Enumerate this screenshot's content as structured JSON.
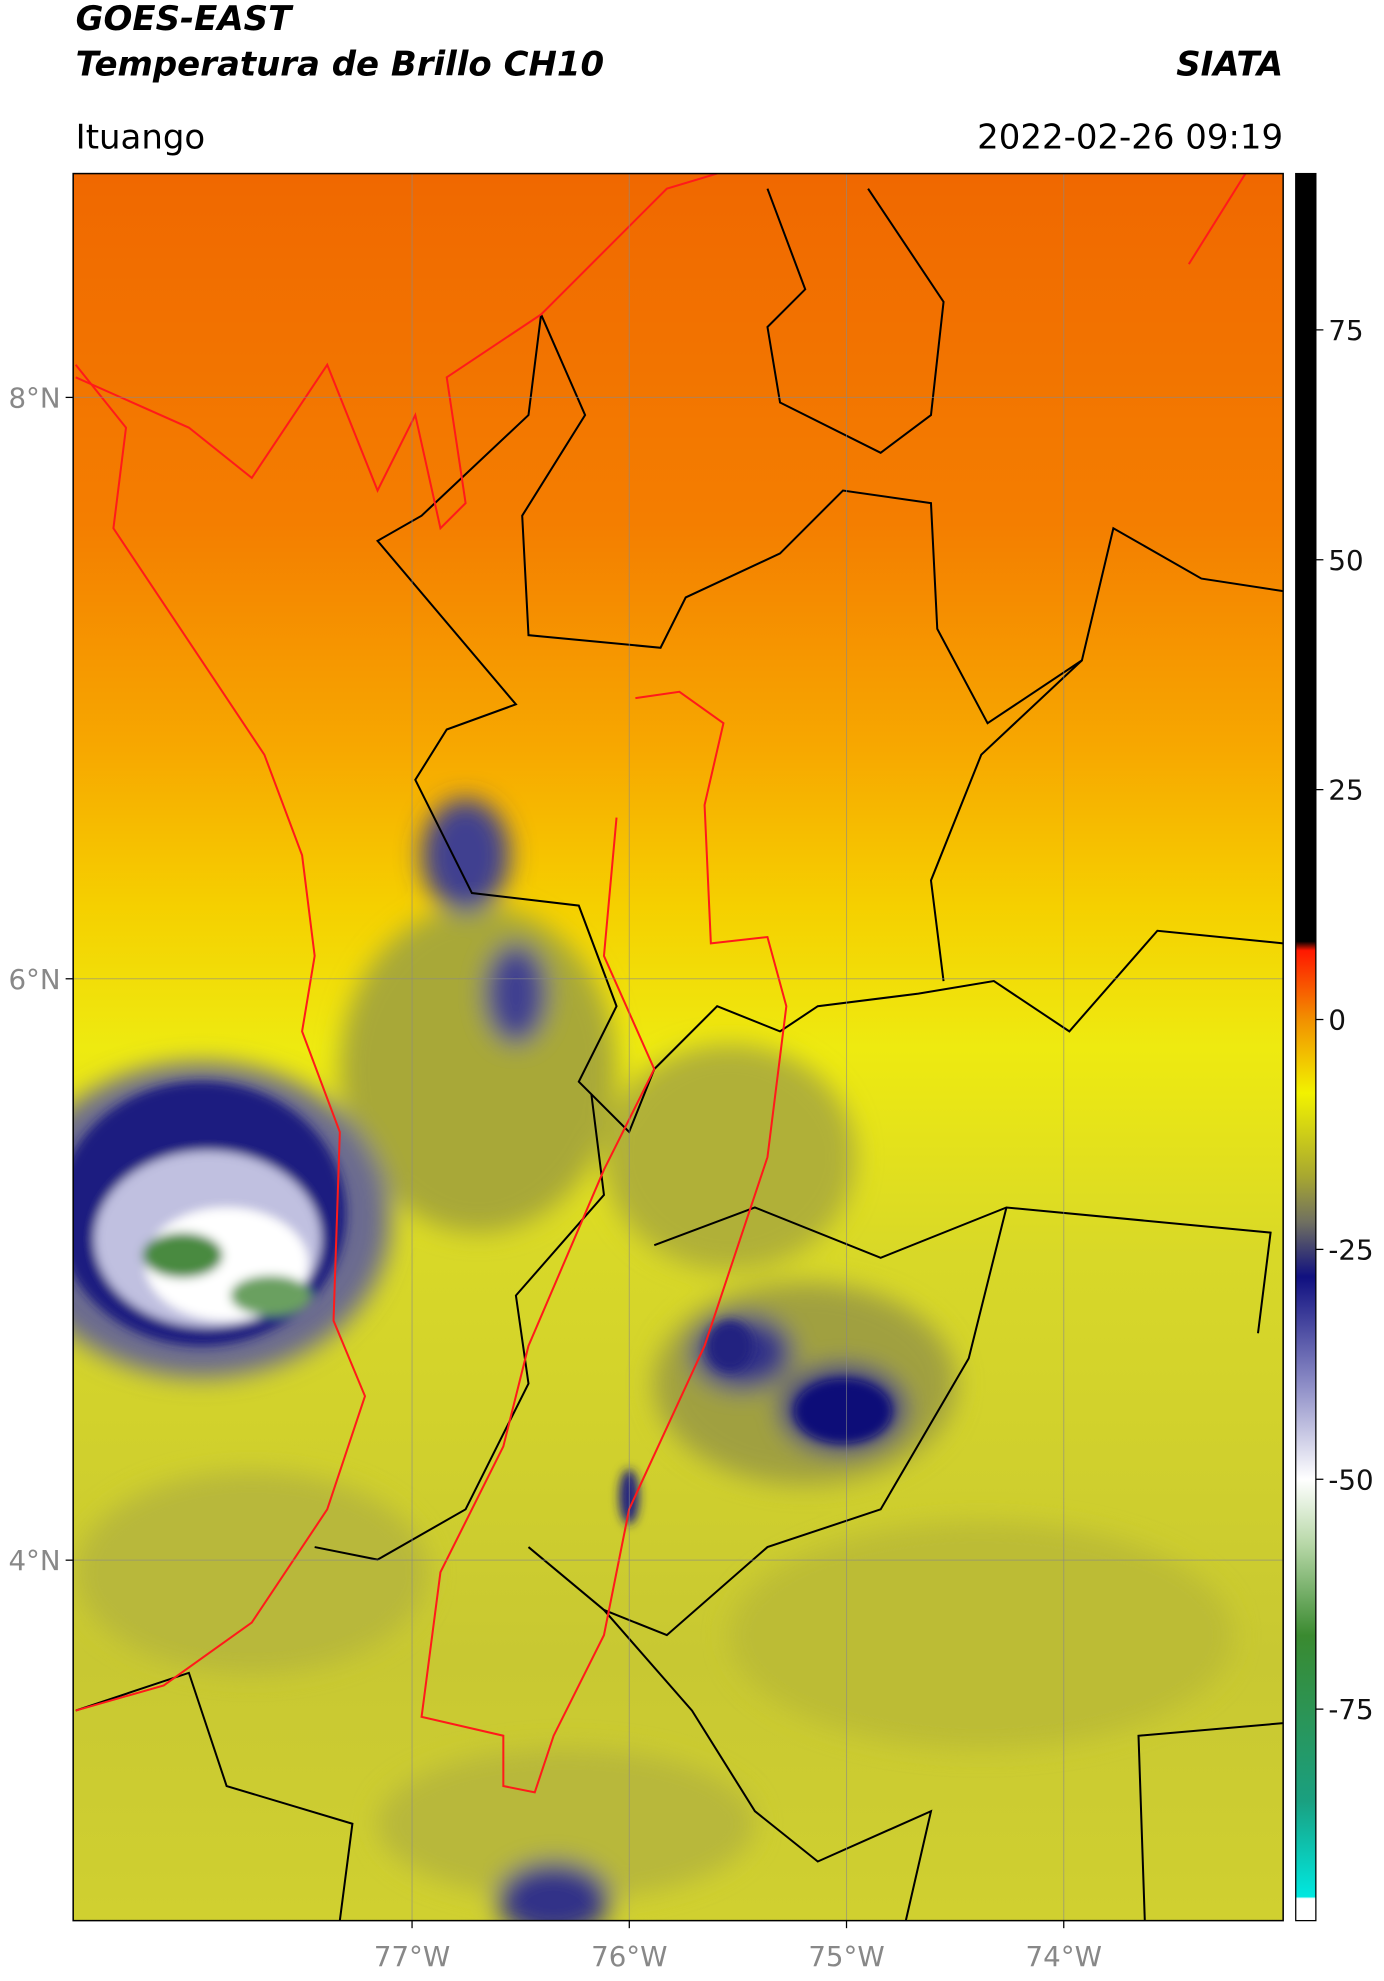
{
  "header": {
    "title": "GOES-EAST",
    "subtitle": "Temperatura de Brillo CH10",
    "credit": "SIATA",
    "location": "Ituango",
    "timestamp": "2022-02-26 09:19"
  },
  "map": {
    "xlim": [
      -78.56,
      -72.99
    ],
    "ylim": [
      2.76,
      8.77
    ],
    "xticks": [
      {
        "value": -77,
        "label": "77°W"
      },
      {
        "value": -76,
        "label": "76°W"
      },
      {
        "value": -75,
        "label": "75°W"
      },
      {
        "value": -74,
        "label": "74°W"
      }
    ],
    "yticks": [
      {
        "value": 8,
        "label": "8°N"
      },
      {
        "value": 6,
        "label": "6°N"
      },
      {
        "value": 4,
        "label": "4°N"
      }
    ]
  },
  "colorbar": {
    "lim": [
      -98,
      92
    ],
    "ticks": [
      75,
      50,
      25,
      0,
      -25,
      -50,
      -75
    ],
    "stops": [
      {
        "value": -98,
        "color": "#ffffff"
      },
      {
        "value": -95.6,
        "color": "#ffffff"
      },
      {
        "value": -95.4,
        "color": "#00e8e0"
      },
      {
        "value": -85,
        "color": "#1aa080"
      },
      {
        "value": -67,
        "color": "#3a8a30"
      },
      {
        "value": -57,
        "color": "#b8d8a8"
      },
      {
        "value": -50,
        "color": "#ffffff"
      },
      {
        "value": -40,
        "color": "#9090c8"
      },
      {
        "value": -28,
        "color": "#101080"
      },
      {
        "value": -22,
        "color": "#707060"
      },
      {
        "value": -17,
        "color": "#a8a830"
      },
      {
        "value": -8,
        "color": "#f2f200"
      },
      {
        "value": 0,
        "color": "#f29000"
      },
      {
        "value": 7.5,
        "color": "#ff1800"
      },
      {
        "value": 8.5,
        "color": "#000000"
      },
      {
        "value": 92,
        "color": "#000000"
      }
    ]
  }
}
